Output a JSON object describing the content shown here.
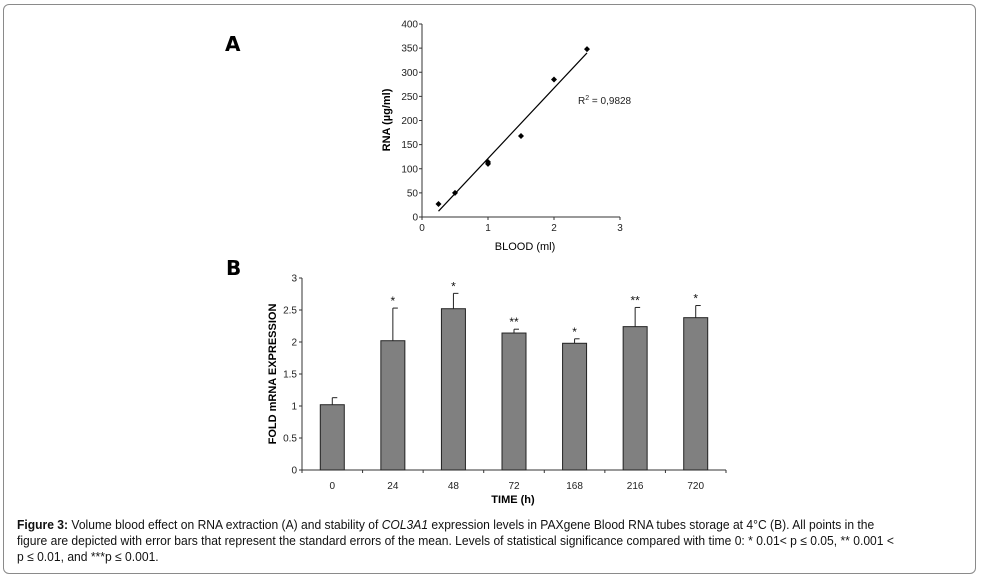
{
  "panels": {
    "a_label": "A",
    "b_label": "B"
  },
  "caption": {
    "label": "Figure 3:",
    "text_1": " Volume blood effect on RNA extraction (A) and stability of ",
    "gene": "COL3A1",
    "text_2": " expression levels in PAXgene Blood RNA tubes storage at 4°C (B). All points in the figure are depicted with error bars that represent the standard errors of the mean. Levels of statistical significance compared with time 0: * 0.01< p ≤ 0.05, ** 0.001 < p ≤ 0.01, and ***p ≤ 0.001."
  },
  "chart_data": [
    {
      "type": "scatter",
      "panel": "A",
      "title": "",
      "xlabel": "BLOOD (ml)",
      "ylabel": "RNA (µg/ml)",
      "xlim": [
        0,
        3
      ],
      "ylim": [
        0,
        400
      ],
      "xticks": [
        0,
        1,
        2,
        3
      ],
      "yticks": [
        0,
        50,
        100,
        150,
        200,
        250,
        300,
        350,
        400
      ],
      "grid": false,
      "points": [
        {
          "x": 0.25,
          "y": 27
        },
        {
          "x": 0.5,
          "y": 50
        },
        {
          "x": 1.0,
          "y": 110
        },
        {
          "x": 1.0,
          "y": 114
        },
        {
          "x": 1.5,
          "y": 168
        },
        {
          "x": 2.0,
          "y": 285
        },
        {
          "x": 2.5,
          "y": 348
        }
      ],
      "trendline": {
        "x": [
          0.25,
          2.5
        ],
        "y": [
          12,
          340
        ]
      },
      "annotation": {
        "r_label": "R",
        "sup": "2",
        "rest": " = 0,9828"
      }
    },
    {
      "type": "bar",
      "panel": "B",
      "title": "",
      "xlabel": "TIME (h)",
      "ylabel": "FOLD mRNA EXPRESSION",
      "ylim": [
        0,
        3
      ],
      "yticks": [
        "0",
        "0.5",
        "1",
        "1.5",
        "2",
        "2.5",
        "3"
      ],
      "grid": false,
      "categories": [
        "0",
        "24",
        "48",
        "72",
        "168",
        "216",
        "720"
      ],
      "values": [
        1.02,
        2.02,
        2.52,
        2.14,
        1.98,
        2.24,
        2.38
      ],
      "error_upper": [
        1.13,
        2.53,
        2.76,
        2.2,
        2.05,
        2.54,
        2.57
      ],
      "significance": [
        "",
        "*",
        "*",
        "**",
        "*",
        "**",
        "*"
      ],
      "bar_color": "#808080"
    }
  ]
}
